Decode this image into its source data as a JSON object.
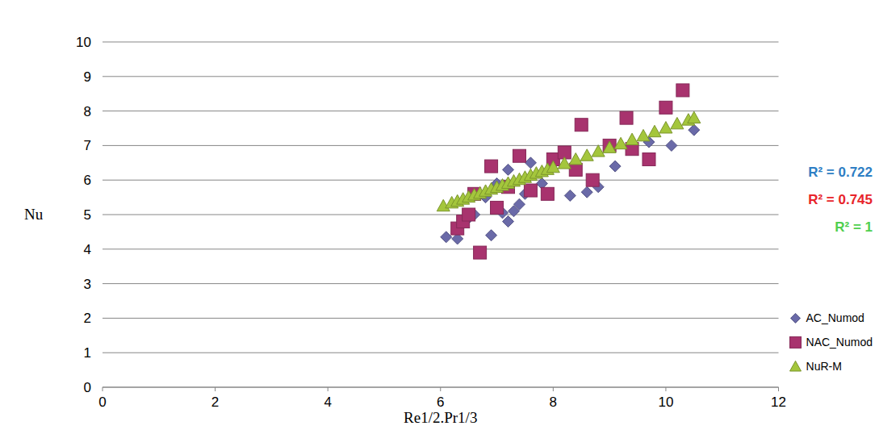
{
  "chart_data": {
    "type": "scatter",
    "x_label": "Re1/2.Pr1/3",
    "y_label": "Nu",
    "xlim": [
      0,
      12
    ],
    "xticks": [
      0,
      2,
      4,
      6,
      8,
      10,
      12
    ],
    "ylim": [
      0,
      10
    ],
    "yticks": [
      0,
      1,
      2,
      3,
      4,
      5,
      6,
      7,
      8,
      9,
      10
    ],
    "grid": true,
    "legend": "right",
    "annotations": [
      {
        "text": "R² = 0.722",
        "color": "#2e7ec4"
      },
      {
        "text": "R² = 0.745",
        "color": "#e8252b"
      },
      {
        "text": "R² = 1",
        "color": "#4fcf4f"
      }
    ],
    "series": [
      {
        "name": "AC_Numod",
        "color": "#6a6aa8",
        "marker": "diamond",
        "x": [
          6.1,
          6.3,
          6.5,
          6.6,
          6.8,
          6.9,
          7.0,
          7.1,
          7.2,
          7.2,
          7.3,
          7.4,
          7.5,
          7.6,
          7.8,
          8.3,
          8.6,
          8.8,
          9.1,
          9.7,
          10.1,
          10.5
        ],
        "values": [
          4.35,
          4.3,
          4.9,
          5.0,
          5.5,
          4.4,
          5.9,
          5.05,
          4.8,
          6.3,
          5.1,
          5.3,
          5.6,
          6.5,
          5.9,
          5.55,
          5.65,
          5.8,
          6.4,
          7.1,
          7.0,
          7.45
        ]
      },
      {
        "name": "NAC_Numod",
        "color": "#a8336e",
        "marker": "square",
        "x": [
          6.3,
          6.4,
          6.5,
          6.6,
          6.7,
          6.9,
          7.0,
          7.2,
          7.4,
          7.6,
          7.9,
          8.0,
          8.2,
          8.4,
          8.5,
          8.7,
          9.0,
          9.3,
          9.4,
          9.7,
          10.0,
          10.3
        ],
        "values": [
          4.6,
          4.8,
          5.0,
          5.6,
          3.9,
          6.4,
          5.2,
          5.8,
          6.7,
          5.7,
          5.6,
          6.6,
          6.8,
          6.3,
          7.6,
          6.0,
          7.0,
          7.8,
          6.9,
          6.6,
          8.1,
          8.6
        ]
      },
      {
        "name": "NuR-M",
        "color": "#a4c63c",
        "marker": "triangle",
        "x": [
          6.05,
          6.2,
          6.3,
          6.4,
          6.5,
          6.6,
          6.7,
          6.8,
          6.9,
          7.0,
          7.1,
          7.2,
          7.3,
          7.4,
          7.5,
          7.6,
          7.7,
          7.8,
          7.9,
          8.0,
          8.2,
          8.4,
          8.6,
          8.8,
          9.0,
          9.2,
          9.4,
          9.6,
          9.8,
          10.0,
          10.2,
          10.4,
          10.5
        ],
        "values": [
          5.25,
          5.34,
          5.39,
          5.45,
          5.51,
          5.57,
          5.62,
          5.68,
          5.74,
          5.79,
          5.85,
          5.91,
          5.97,
          6.02,
          6.08,
          6.14,
          6.2,
          6.25,
          6.31,
          6.37,
          6.48,
          6.6,
          6.71,
          6.83,
          6.94,
          7.05,
          7.17,
          7.28,
          7.4,
          7.51,
          7.63,
          7.74,
          7.8
        ]
      }
    ]
  }
}
